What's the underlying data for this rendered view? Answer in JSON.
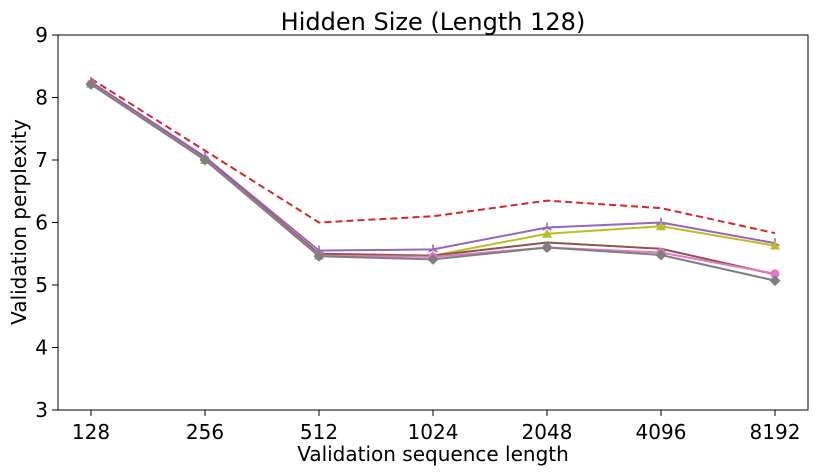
{
  "chart_data": {
    "type": "line",
    "title": "Hidden Size (Length 128)",
    "xlabel": "Validation sequence length",
    "ylabel": "Validation perplexity",
    "categories": [
      "128",
      "256",
      "512",
      "1024",
      "2048",
      "4096",
      "8192"
    ],
    "ylim": [
      3,
      9
    ],
    "yticks": [
      "3",
      "4",
      "5",
      "6",
      "7",
      "8",
      "9"
    ],
    "grid": false,
    "legend": "none",
    "series": [
      {
        "name": "red-dashed",
        "color": "#d62728",
        "dashed": true,
        "marker": "none",
        "values": [
          8.3,
          7.15,
          6.0,
          6.1,
          6.35,
          6.23,
          5.83
        ]
      },
      {
        "name": "purple",
        "color": "#9467bd",
        "dashed": false,
        "marker": "tri",
        "values": [
          8.25,
          7.05,
          5.55,
          5.57,
          5.92,
          6.0,
          5.67
        ]
      },
      {
        "name": "olive",
        "color": "#bcbd22",
        "dashed": false,
        "marker": "triangle",
        "values": [
          8.22,
          7.0,
          5.47,
          5.47,
          5.82,
          5.94,
          5.63
        ]
      },
      {
        "name": "brown",
        "color": "#8c564b",
        "dashed": false,
        "marker": "none",
        "values": [
          8.23,
          7.02,
          5.5,
          5.47,
          5.68,
          5.58,
          5.17
        ]
      },
      {
        "name": "pink",
        "color": "#e377c2",
        "dashed": false,
        "marker": "circle",
        "values": [
          8.22,
          7.01,
          5.47,
          5.45,
          5.6,
          5.52,
          5.18
        ]
      },
      {
        "name": "gray",
        "color": "#7f7f7f",
        "dashed": false,
        "marker": "diamond",
        "values": [
          8.21,
          7.0,
          5.46,
          5.41,
          5.6,
          5.48,
          5.07
        ]
      }
    ]
  }
}
